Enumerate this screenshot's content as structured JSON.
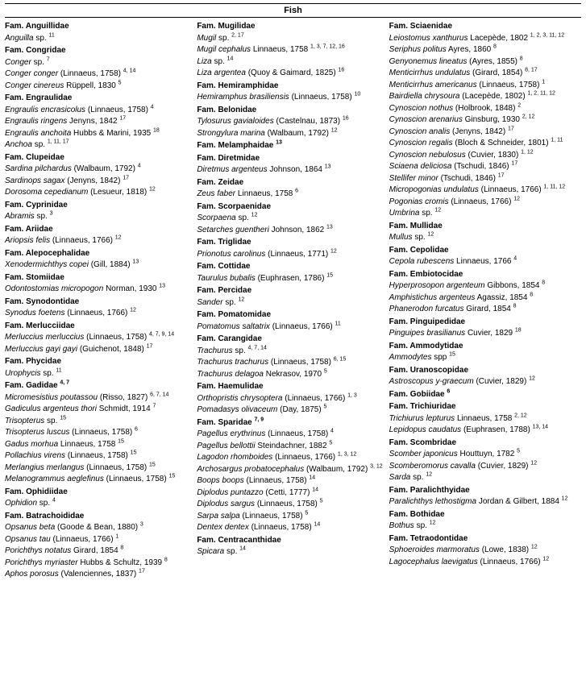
{
  "header": "Fish",
  "columns": [
    [
      {
        "t": "fam",
        "text": "Fam. Anguillidae"
      },
      {
        "t": "sp",
        "text": "<i>Anguilla</i> sp. <sup>11</sup>"
      },
      {
        "t": "fam",
        "text": "Fam. Congridae"
      },
      {
        "t": "sp",
        "text": "<i>Conger</i> sp. <sup>7</sup>"
      },
      {
        "t": "sp",
        "text": "<i>Conger conger</i>  (Linnaeus, 1758) <sup>4, 14</sup>"
      },
      {
        "t": "sp",
        "text": "<i>Conger cinereus</i> Rüppell, 1830 <sup>5</sup>"
      },
      {
        "t": "fam",
        "text": "Fam. Engraulidae"
      },
      {
        "t": "sp",
        "text": "<i>Engraulis encrasicolus</i> (Linnaeus, 1758) <sup>4</sup>"
      },
      {
        "t": "sp",
        "text": "<i>Engraulis ringens</i> Jenyns, 1842 <sup>17</sup>"
      },
      {
        "t": "sp",
        "text": "<i>Engraulis  anchoita</i>  Hubbs & Marini, 1935 <sup>18</sup>"
      },
      {
        "t": "sp",
        "text": "<i>Anchoa</i> sp. <sup>1, 11, 17</sup>"
      },
      {
        "t": "fam",
        "text": "Fam. Clupeidae"
      },
      {
        "t": "sp",
        "text": "<i>Sardina pilchardus</i> (Walbaum, 1792) <sup>4</sup>"
      },
      {
        "t": "sp",
        "text": "<i>Sardinops sagax</i> (Jenyns, 1842) <sup>17</sup>"
      },
      {
        "t": "sp",
        "text": "<i>Dorosoma  cepedianum</i>  (Lesueur, 1818) <sup>12</sup>"
      },
      {
        "t": "fam",
        "text": "Fam. Cyprinidae"
      },
      {
        "t": "sp",
        "text": "<i>Abramis</i> sp. <sup>3</sup>"
      },
      {
        "t": "fam",
        "text": "Fam. Ariidae"
      },
      {
        "t": "sp",
        "text": "<i>Ariopsis  felis</i>  (Linnaeus, 1766) <sup>12</sup>"
      },
      {
        "t": "fam",
        "text": "Fam. Alepocephalidae"
      },
      {
        "t": "sp",
        "text": "<i>Xenodermichthys copei</i>  (Gill, 1884) <sup>13</sup>"
      },
      {
        "t": "fam",
        "text": "Fam. Stomiidae"
      },
      {
        "t": "sp",
        "text": "<i>Odontostomias  micropogon</i>  Norman, 1930 <sup>13</sup>"
      },
      {
        "t": "fam",
        "text": "Fam. Synodontidae"
      },
      {
        "t": "sp",
        "text": "<i>Synodus  foetens</i>  (Linnaeus, 1766) <sup>12</sup>"
      },
      {
        "t": "fam",
        "text": "Fam. Merlucciidae"
      },
      {
        "t": "sp",
        "text": "<i>Merluccius merluccius</i> (Linnaeus, 1758) <sup>4, 7, 9, 14</sup>"
      },
      {
        "t": "sp",
        "text": "<i>Merluccius gayi gayi</i> (Guichenot, 1848) <sup>17</sup>"
      },
      {
        "t": "fam",
        "text": "Fam. Phycidae"
      },
      {
        "t": "sp",
        "text": "<i>Urophycis</i> sp. <sup>11</sup>"
      },
      {
        "t": "fam",
        "text": "Fam. Gadidae <sup>4, 7</sup>"
      },
      {
        "t": "sp",
        "text": "<i>Micromesistius poutassou</i> (Risso, 1827) <sup>6, 7, 14</sup>"
      },
      {
        "t": "sp",
        "text": "<i>Gadiculus argenteus thori</i> Schmidt, 1914 <sup>7</sup>"
      },
      {
        "t": "sp",
        "text": "<i>Trisopterus</i> sp. <sup>15</sup>"
      },
      {
        "t": "sp",
        "text": "<i>Trisopterus luscus</i> (Linnaeus, 1758) <sup>6</sup>"
      },
      {
        "t": "sp",
        "text": "<i>Gadus morhua</i>  Linnaeus, 1758 <sup>15</sup>"
      },
      {
        "t": "sp",
        "text": "<i>Pollachius virens</i> (Linnaeus, 1758) <sup>15</sup>"
      },
      {
        "t": "sp",
        "text": "<i>Merlangius merlangus</i> (Linnaeus, 1758) <sup>15</sup>"
      },
      {
        "t": "sp",
        "text": "<i>Melanogrammus aeglefinus</i> (Linnaeus, 1758) <sup>15</sup>"
      },
      {
        "t": "fam",
        "text": "Fam. Ophidiidae"
      },
      {
        "t": "sp",
        "text": "<i>Ophidion</i> sp. <sup>4</sup>"
      },
      {
        "t": "fam",
        "text": "Fam. Batrachoididae"
      },
      {
        "t": "sp",
        "text": "<i>Opsanus beta</i>  (Goode & Bean, 1880) <sup>3</sup>"
      },
      {
        "t": "sp",
        "text": "<i>Opsanus tau</i> (Linnaeus, 1766) <sup>1</sup>"
      },
      {
        "t": "sp",
        "text": "<i>Porichthys notatus</i> Girard, 1854 <sup>8</sup>"
      },
      {
        "t": "sp",
        "text": "<i>Porichthys myriaster</i>  Hubbs & Schultz, 1939 <sup>8</sup>"
      },
      {
        "t": "sp",
        "text": "<i>Aphos porosus</i> (Valenciennes, 1837) <sup>17</sup>"
      }
    ],
    [
      {
        "t": "fam",
        "text": "Fam. Mugilidae"
      },
      {
        "t": "sp",
        "text": "<i>Mugil</i> sp. <sup>2, 17</sup>"
      },
      {
        "t": "sp",
        "text": "<i>Mugil cephalus</i>  Linnaeus, 1758 <sup>1, 3, 7, 12, 16</sup>"
      },
      {
        "t": "sp",
        "text": "<i>Liza</i> sp. <sup>14</sup>"
      },
      {
        "t": "sp",
        "text": "<i>Liza argentea</i> (Quoy & Gaimard, 1825) <sup>16</sup>"
      },
      {
        "t": "fam",
        "text": "Fam. Hemiramphidae"
      },
      {
        "t": "sp",
        "text": "<i>Hemiramphus brasiliensis</i> (Linnaeus, 1758)  <sup>10</sup>"
      },
      {
        "t": "fam",
        "text": "Fam. Belonidae"
      },
      {
        "t": "sp",
        "text": "<i>Tylosurus gavialoides</i> (Castelnau, 1873) <sup>16</sup>"
      },
      {
        "t": "sp",
        "text": "<i>Strongylura  marina</i>  (Walbaum, 1792) <sup>12</sup>"
      },
      {
        "t": "fam",
        "text": "Fam. Melamphaidae <sup>13</sup>"
      },
      {
        "t": "fam",
        "text": "Fam. Diretmidae"
      },
      {
        "t": "sp",
        "text": "<i>Diretmus argenteus</i> Johnson, 1864 <sup>13</sup>"
      },
      {
        "t": "fam",
        "text": "Fam. Zeidae"
      },
      {
        "t": "sp",
        "text": "<i>Zeus faber</i> Linnaeus, 1758 <sup>6</sup>"
      },
      {
        "t": "fam",
        "text": "Fam. Scorpaenidae"
      },
      {
        "t": "sp",
        "text": "<i>Scorpaena</i> sp. <sup>12</sup>"
      },
      {
        "t": "sp",
        "text": "<i>Setarches guentheri</i> Johnson, 1862 <sup>13</sup>"
      },
      {
        "t": "fam",
        "text": "Fam. Triglidae"
      },
      {
        "t": "sp",
        "text": "<i>Prionotus carolinus</i>  (Linnaeus, 1771) <sup>12</sup>"
      },
      {
        "t": "fam",
        "text": "Fam. Cottidae"
      },
      {
        "t": "sp",
        "text": "<i>Taurulus bubalis</i> (Euphrasen, 1786) <sup>15</sup>"
      },
      {
        "t": "fam",
        "text": "Fam. Percidae"
      },
      {
        "t": "sp",
        "text": "<i>Sander</i> sp. <sup>12</sup>"
      },
      {
        "t": "fam",
        "text": "Fam. Pomatomidae"
      },
      {
        "t": "sp",
        "text": "<i>Pomatomus saltatrix</i>  (Linnaeus, 1766) <sup>11</sup>"
      },
      {
        "t": "fam",
        "text": "Fam. Carangidae"
      },
      {
        "t": "sp",
        "text": "<i>Trachurus</i> sp. <sup>4, 7, 14</sup>"
      },
      {
        "t": "sp",
        "text": "<i>Trachurus trachurus</i> (Linnaeus, 1758) <sup>6, 15</sup>"
      },
      {
        "t": "sp",
        "text": "<i>Trachurus delagoa</i> Nekrasov, 1970 <sup>5</sup>"
      },
      {
        "t": "fam",
        "text": "Fam. Haemulidae"
      },
      {
        "t": "sp",
        "text": "<i>Orthopristis chrysoptera</i> (Linnaeus, 1766) <sup>1, 3</sup>"
      },
      {
        "t": "sp",
        "text": "<i>Pomadasys olivaceum</i> (Day, 1875) <sup>5</sup>"
      },
      {
        "t": "fam",
        "text": "Fam. Sparidae <sup>7, 9</sup>"
      },
      {
        "t": "sp",
        "text": "<i>Pagellus erythrinus</i> (Linnaeus, 1758) <sup>4</sup>"
      },
      {
        "t": "sp",
        "text": "<i>Pagellus bellottii</i> Steindachner, 1882 <sup>5</sup>"
      },
      {
        "t": "sp",
        "text": "<i>Lagodon rhomboides</i> (Linnaeus, 1766) <sup>1, 3, 12</sup>"
      },
      {
        "t": "sp",
        "text": "<i>Archosargus probatocephalus</i> (Walbaum, 1792) <sup>3, 12</sup>"
      },
      {
        "t": "sp",
        "text": "<i>Boops boops</i> (Linnaeus, 1758) <sup>14</sup>"
      },
      {
        "t": "sp",
        "text": "<i>Diplodus puntazzo</i> (Cetti, 1777) <sup>14</sup>"
      },
      {
        "t": "sp",
        "text": "<i>Diplodus sargus</i>  (Linnaeus, 1758) <sup>5</sup>"
      },
      {
        "t": "sp",
        "text": "<i>Sarpa salpa</i>  (Linnaeus, 1758) <sup>5</sup>"
      },
      {
        "t": "sp",
        "text": "<i>Dentex dentex</i> (Linnaeus, 1758) <sup>14</sup>"
      },
      {
        "t": "fam",
        "text": "Fam. Centracanthidae"
      },
      {
        "t": "sp",
        "text": "<i>Spicara</i> sp. <sup>14</sup>"
      }
    ],
    [
      {
        "t": "fam",
        "text": "Fam. Sciaenidae"
      },
      {
        "t": "sp",
        "text": "<i>Leiostomus xanthurus</i> Lacepède, 1802 <sup>1, 2, 3, 11, 12</sup>"
      },
      {
        "t": "sp",
        "text": "<i>Seriphus politus</i> Ayres, 1860 <sup>8</sup>"
      },
      {
        "t": "sp",
        "text": "<i>Genyonemus lineatus</i> (Ayres, 1855) <sup>8</sup>"
      },
      {
        "t": "sp",
        "text": "<i>Menticirrhus undulatus</i> (Girard, 1854) <sup>8, 17</sup>"
      },
      {
        "t": "sp",
        "text": "<i>Menticirrhus  americanus</i>  (Linnaeus, 1758) <sup>1</sup>"
      },
      {
        "t": "sp",
        "text": "<i>Bairdiella chrysoura</i> (Lacepède, 1802) <sup>1, 2, 11, 12</sup>"
      },
      {
        "t": "sp",
        "text": "<i>Cynoscion nothus</i> (Holbrook, 1848) <sup>2</sup>"
      },
      {
        "t": "sp",
        "text": "<i>Cynoscion arenarius</i> Ginsburg, 1930 <sup>2, 12</sup>"
      },
      {
        "t": "sp",
        "text": "<i>Cynoscion analis</i> (Jenyns, 1842) <sup>17</sup>"
      },
      {
        "t": "sp",
        "text": "<i>Cynoscion regalis</i> (Bloch & Schneider, 1801) <sup>1, 11</sup>"
      },
      {
        "t": "sp",
        "text": "<i>Cynoscion nebulosus</i> (Cuvier, 1830) <sup>1, 12</sup>"
      },
      {
        "t": "sp",
        "text": "<i>Sciaena deliciosa</i>  (Tschudi, 1846) <sup>17</sup>"
      },
      {
        "t": "sp",
        "text": "<i>Stellifer minor</i>  (Tschudi, 1846) <sup>17</sup>"
      },
      {
        "t": "sp",
        "text": "<i>Micropogonias undulatus</i> (Linnaeus, 1766) <sup>1, 11, 12</sup>"
      },
      {
        "t": "sp",
        "text": "<i>Pogonias cromis</i> (Linnaeus, 1766) <sup>12</sup>"
      },
      {
        "t": "sp",
        "text": "<i>Umbrina</i> sp. <sup>12</sup>"
      },
      {
        "t": "fam",
        "text": "Fam. Mullidae"
      },
      {
        "t": "sp",
        "text": "<i>Mullus</i> sp. <sup>12</sup>"
      },
      {
        "t": "fam",
        "text": "Fam. Cepolidae"
      },
      {
        "t": "sp",
        "text": "<i>Cepola rubescens</i> Linnaeus, 1766 <sup>4</sup>"
      },
      {
        "t": "fam",
        "text": "Fam. Embiotocidae"
      },
      {
        "t": "sp",
        "text": "<i>Hyperprosopon argenteum</i> Gibbons, 1854 <sup>8</sup>"
      },
      {
        "t": "sp",
        "text": "<i>Amphistichus argenteus</i> Agassiz, 1854 <sup>8</sup>"
      },
      {
        "t": "sp",
        "text": "<i>Phanerodon furcatus</i> Girard, 1854 <sup>8</sup>"
      },
      {
        "t": "fam",
        "text": "Fam. Pinguipedidae"
      },
      {
        "t": "sp",
        "text": "<i>Pinguipes brasilianus</i> Cuvier, 1829 <sup>18</sup>"
      },
      {
        "t": "fam",
        "text": "Fam. Ammodytidae"
      },
      {
        "t": "sp",
        "text": "<i>Ammodytes</i> spp <sup>15</sup>"
      },
      {
        "t": "fam",
        "text": "Fam. Uranoscopidae"
      },
      {
        "t": "sp",
        "text": "<i>Astroscopus y-graecum</i> (Cuvier, 1829) <sup>12</sup>"
      },
      {
        "t": "fam",
        "text": "Fam. Gobiidae <sup>6</sup>"
      },
      {
        "t": "fam",
        "text": "Fam. Trichiuridae"
      },
      {
        "t": "sp",
        "text": "<i>Trichiurus lepturus</i> Linnaeus, 1758 <sup>2, 12</sup>"
      },
      {
        "t": "sp",
        "text": "<i>Lepidopus caudatus</i> (Euphrasen, 1788) <sup>13, 14</sup>"
      },
      {
        "t": "fam",
        "text": "Fam. Scombridae"
      },
      {
        "t": "sp",
        "text": "<i>Scomber japonicus</i> Houttuyn, 1782 <sup>5</sup>"
      },
      {
        "t": "sp",
        "text": "<i>Scomberomorus cavalla</i>  (Cuvier, 1829) <sup>12</sup>"
      },
      {
        "t": "sp",
        "text": "<i>Sarda</i> sp. <sup>12</sup>"
      },
      {
        "t": "fam",
        "text": "Fam. Paralichthyidae"
      },
      {
        "t": "sp",
        "text": "<i>Paralichthys lethostigma</i> Jordan & Gilbert, 1884 <sup>12</sup>"
      },
      {
        "t": "fam",
        "text": "Fam. Bothidae"
      },
      {
        "t": "sp",
        "text": "<i>Bothus</i> sp. <sup>12</sup>"
      },
      {
        "t": "fam",
        "text": "Fam. Tetraodontidae"
      },
      {
        "t": "sp",
        "text": "<i>Sphoeroides marmoratus</i>  (Lowe, 1838) <sup>12</sup>"
      },
      {
        "t": "sp",
        "text": "<i>Lagocephalus laevigatus</i> (Linnaeus, 1766) <sup>12</sup>"
      }
    ]
  ]
}
